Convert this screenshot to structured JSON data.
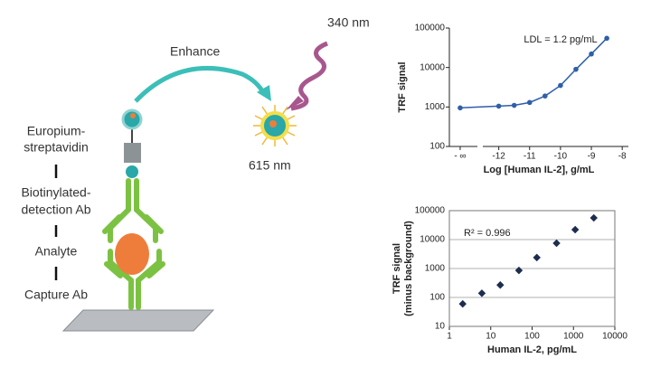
{
  "diagram": {
    "excitation": "340 nm",
    "enhance": "Enhance",
    "emission": "615 nm",
    "europium": [
      "Europium-",
      "streptavidin"
    ],
    "detection": [
      "Biotinylated-",
      "detection Ab"
    ],
    "analyte": "Analyte",
    "capture": "Capture Ab"
  },
  "chart_data": [
    {
      "type": "line",
      "annotation": "LDL = 1.2 pg/mL",
      "xlabel": "Log [Human IL-2], g/mL",
      "ylabel": "TRF signal",
      "x": [
        -13.25,
        -12,
        -11.5,
        -11,
        -10.5,
        -10,
        -9.5,
        -9,
        -8.5
      ],
      "values": [
        950,
        1050,
        1100,
        1300,
        1900,
        3500,
        9000,
        22000,
        55000
      ],
      "color": "#2f5fa8",
      "xlim": [
        -13.6,
        -7.8
      ],
      "ylim": [
        100,
        100000
      ],
      "xticks": [
        {
          "value": -13.25,
          "label": "- ∞"
        },
        -12,
        -11,
        -10,
        -9,
        -8
      ],
      "yticks": [
        100,
        1000,
        10000,
        100000
      ],
      "yscale": "log",
      "grid": false
    },
    {
      "type": "scatter",
      "annotation": "R² = 0.996",
      "xlabel": "Human IL-2, pg/mL",
      "ylabel": [
        "TRF signal",
        "(minus background)"
      ],
      "x": [
        2.1,
        6.1,
        17,
        48,
        130,
        390,
        1100,
        3100
      ],
      "values": [
        60,
        140,
        270,
        860,
        2400,
        7500,
        22000,
        56000
      ],
      "color": "#1c2d50",
      "xlim": [
        1,
        10000
      ],
      "ylim": [
        10,
        100000
      ],
      "xticks": [
        1,
        10,
        100,
        1000,
        10000
      ],
      "yticks": [
        10,
        100,
        1000,
        10000,
        100000
      ],
      "xscale": "log",
      "yscale": "log",
      "grid": true
    }
  ]
}
